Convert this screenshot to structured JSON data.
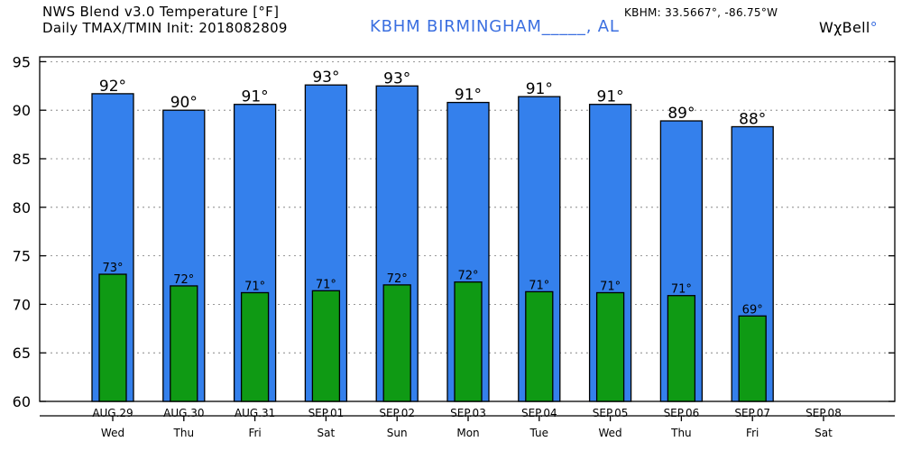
{
  "header": {
    "title_line1": "NWS Blend v3.0 Temperature [°F]",
    "title_line2": "Daily TMAX/TMIN Init: 2018082809",
    "station": "KBHM BIRMINGHAM_____, AL",
    "coords": "KBHM: 33.5667°, -86.75°W",
    "brand": "WχBell",
    "brand_dot": "°",
    "colors": {
      "station_text": "#3b6fe0",
      "tmax_bar": "#3480ec",
      "tmin_bar": "#0f9a14"
    }
  },
  "chart_data": {
    "type": "bar",
    "categories": [
      "AUG.29",
      "AUG.30",
      "AUG.31",
      "SEP.01",
      "SEP.02",
      "SEP.03",
      "SEP.04",
      "SEP.05",
      "SEP.06",
      "SEP.07",
      "SEP.08"
    ],
    "days": [
      "Wed",
      "Thu",
      "Fri",
      "Sat",
      "Sun",
      "Mon",
      "Tue",
      "Wed",
      "Thu",
      "Fri",
      "Sat"
    ],
    "series": [
      {
        "values": [
          91.7,
          90.0,
          90.6,
          92.6,
          92.5,
          90.8,
          91.4,
          90.6,
          88.9,
          88.3,
          null
        ],
        "labels": [
          "92°",
          "90°",
          "91°",
          "93°",
          "93°",
          "91°",
          "91°",
          "91°",
          "89°",
          "88°",
          ""
        ]
      },
      {
        "values": [
          73.1,
          71.9,
          71.2,
          71.4,
          72.0,
          72.3,
          71.3,
          71.2,
          70.9,
          68.8,
          null
        ],
        "labels": [
          "73°",
          "72°",
          "71°",
          "71°",
          "72°",
          "72°",
          "71°",
          "71°",
          "71°",
          "69°",
          ""
        ]
      }
    ],
    "yticks": [
      60,
      65,
      70,
      75,
      80,
      85,
      90,
      95
    ],
    "ylim": [
      60,
      95.5
    ],
    "grid": true,
    "legend": "none"
  }
}
